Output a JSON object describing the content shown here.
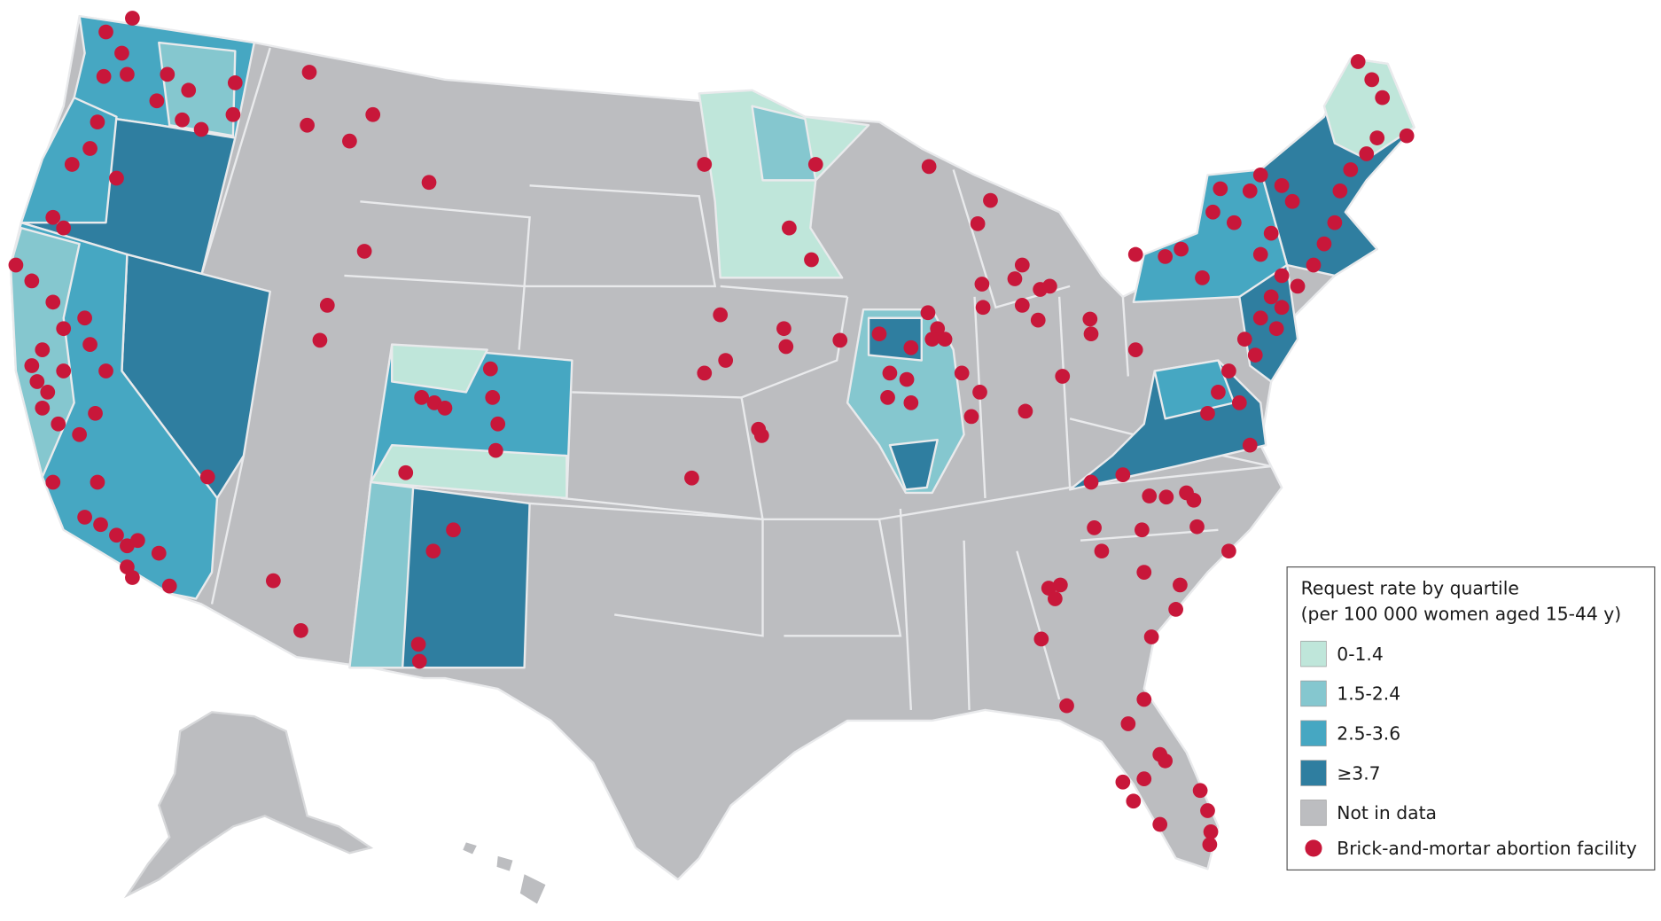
{
  "legend": {
    "title": "Request rate by quartile",
    "subtitle": "(per 100 000 women aged 15-44 y)",
    "items": [
      {
        "label": "0-1.4",
        "color": "#bfe6da"
      },
      {
        "label": "1.5-2.4",
        "color": "#85c7cf"
      },
      {
        "label": "2.5-3.6",
        "color": "#46a7c2"
      },
      {
        "label": "≥3.7",
        "color": "#2f7ea0"
      },
      {
        "label": "Not in data",
        "color": "#bcbdc0"
      }
    ],
    "facility": {
      "label": "Brick-and-mortar abortion facility",
      "color": "#c8173a"
    }
  }
}
